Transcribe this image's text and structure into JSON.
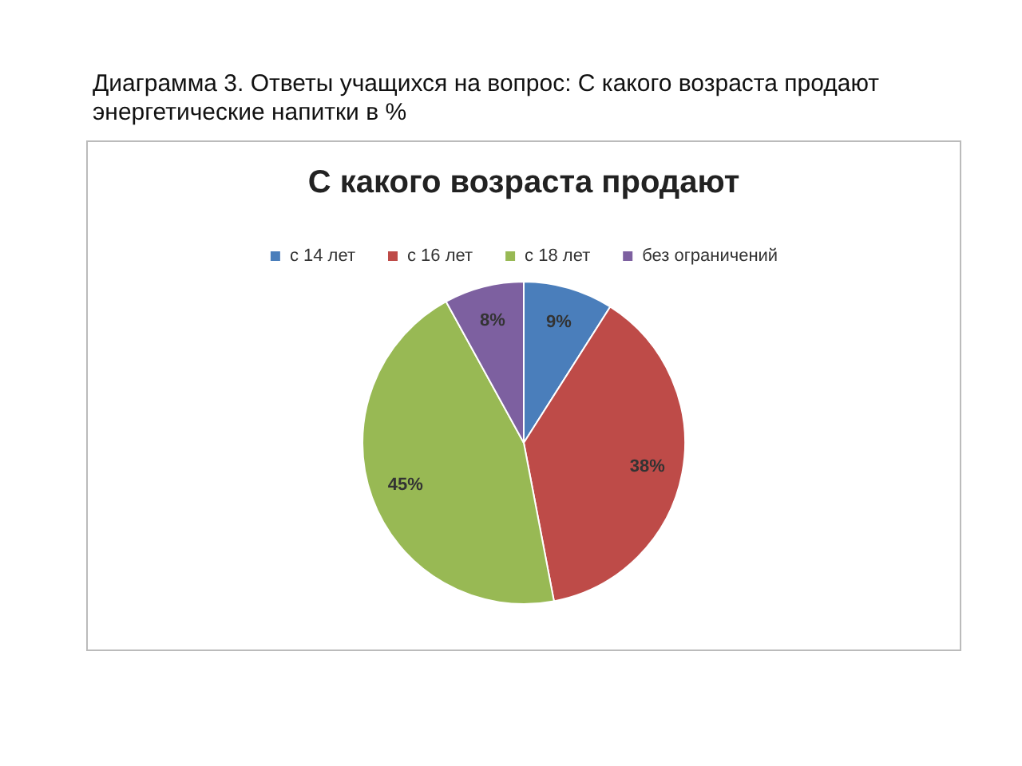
{
  "chart_data": {
    "type": "pie",
    "title": "С какого возраста продают",
    "annotations": [
      "Диаграмма 3. Ответы учащихся на вопрос: С какого возраста продают энергетические напитки в %"
    ],
    "categories": [
      "с 14 лет",
      "с 16 лет",
      "с 18 лет",
      "без ограничений"
    ],
    "values": [
      9,
      38,
      45,
      8
    ],
    "colors": [
      "#4a7ebb",
      "#be4b48",
      "#98b954",
      "#7d60a0"
    ],
    "value_labels": [
      "9%",
      "38%",
      "45%",
      "8%"
    ],
    "legend": "top"
  }
}
